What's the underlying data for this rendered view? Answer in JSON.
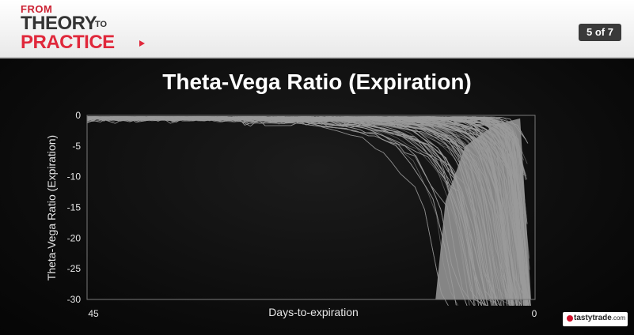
{
  "header": {
    "logo": {
      "from": "FROM",
      "theory": "THEORY",
      "to": "TO",
      "practice": "PRACTICE"
    },
    "page_indicator": "5 of 7"
  },
  "slide": {
    "title": "Theta-Vega Ratio (Expiration)"
  },
  "brand": {
    "name": "tastytrade",
    "suffix": ".com"
  },
  "colors": {
    "background": "#0d0d0d",
    "lines": "#9a9a9a",
    "accent": "#e0283b"
  },
  "chart_data": {
    "type": "line",
    "title": "",
    "xlabel": "Days-to-expiration",
    "ylabel": "Theta-Vega Ratio (Expiration)",
    "x_ticks": [
      "45",
      "0"
    ],
    "y_ticks": [
      "0",
      "-5",
      "-10",
      "-15",
      "-20",
      "-25",
      "-30"
    ],
    "xlim": [
      45,
      0
    ],
    "ylim": [
      -30,
      0
    ],
    "grid": false,
    "legend": "none",
    "note": "many overlapping series; values approximated"
  }
}
